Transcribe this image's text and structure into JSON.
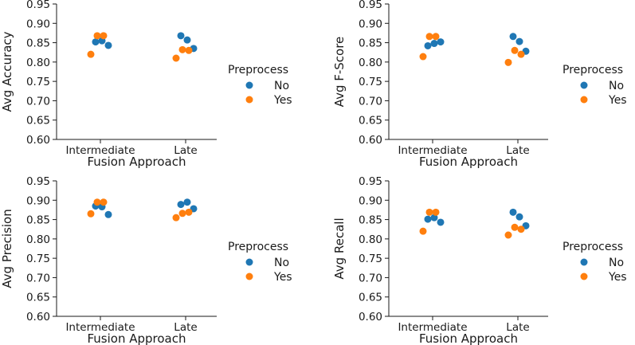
{
  "colors": {
    "No": "#1f77b4",
    "Yes": "#ff7f0e"
  },
  "chart_data": [
    {
      "type": "scatter",
      "title": "",
      "xlabel": "Fusion Approach",
      "ylabel": "Avg Accuracy",
      "categories": [
        "Intermediate",
        "Late"
      ],
      "ylim": [
        0.6,
        0.95
      ],
      "yticks": [
        "0.60",
        "0.65",
        "0.70",
        "0.75",
        "0.80",
        "0.85",
        "0.90",
        "0.95"
      ],
      "legend_title": "Preprocess",
      "series": [
        {
          "name": "No",
          "points": [
            [
              "Intermediate",
              0.852
            ],
            [
              "Intermediate",
              0.855
            ],
            [
              "Intermediate",
              0.843
            ],
            [
              "Late",
              0.868
            ],
            [
              "Late",
              0.857
            ],
            [
              "Late",
              0.835
            ]
          ]
        },
        {
          "name": "Yes",
          "points": [
            [
              "Intermediate",
              0.868
            ],
            [
              "Intermediate",
              0.868
            ],
            [
              "Intermediate",
              0.82
            ],
            [
              "Late",
              0.832
            ],
            [
              "Late",
              0.83
            ],
            [
              "Late",
              0.81
            ]
          ]
        }
      ]
    },
    {
      "type": "scatter",
      "title": "",
      "xlabel": "Fusion Approach",
      "ylabel": "Avg F-Score",
      "categories": [
        "Intermediate",
        "Late"
      ],
      "ylim": [
        0.6,
        0.95
      ],
      "yticks": [
        "0.60",
        "0.65",
        "0.70",
        "0.75",
        "0.80",
        "0.85",
        "0.90",
        "0.95"
      ],
      "legend_title": "Preprocess",
      "series": [
        {
          "name": "No",
          "points": [
            [
              "Intermediate",
              0.842
            ],
            [
              "Intermediate",
              0.848
            ],
            [
              "Intermediate",
              0.852
            ],
            [
              "Late",
              0.866
            ],
            [
              "Late",
              0.853
            ],
            [
              "Late",
              0.828
            ]
          ]
        },
        {
          "name": "Yes",
          "points": [
            [
              "Intermediate",
              0.866
            ],
            [
              "Intermediate",
              0.866
            ],
            [
              "Intermediate",
              0.814
            ],
            [
              "Late",
              0.83
            ],
            [
              "Late",
              0.82
            ],
            [
              "Late",
              0.799
            ]
          ]
        }
      ]
    },
    {
      "type": "scatter",
      "title": "",
      "xlabel": "Fusion Approach",
      "ylabel": "Avg Precision",
      "categories": [
        "Intermediate",
        "Late"
      ],
      "ylim": [
        0.6,
        0.95
      ],
      "yticks": [
        "0.60",
        "0.65",
        "0.70",
        "0.75",
        "0.80",
        "0.85",
        "0.90",
        "0.95"
      ],
      "legend_title": "Preprocess",
      "series": [
        {
          "name": "No",
          "points": [
            [
              "Intermediate",
              0.885
            ],
            [
              "Intermediate",
              0.883
            ],
            [
              "Intermediate",
              0.863
            ],
            [
              "Late",
              0.889
            ],
            [
              "Late",
              0.895
            ],
            [
              "Late",
              0.878
            ]
          ]
        },
        {
          "name": "Yes",
          "points": [
            [
              "Intermediate",
              0.895
            ],
            [
              "Intermediate",
              0.895
            ],
            [
              "Intermediate",
              0.865
            ],
            [
              "Late",
              0.866
            ],
            [
              "Late",
              0.869
            ],
            [
              "Late",
              0.855
            ]
          ]
        }
      ]
    },
    {
      "type": "scatter",
      "title": "",
      "xlabel": "Fusion Approach",
      "ylabel": "Avg Recall",
      "categories": [
        "Intermediate",
        "Late"
      ],
      "ylim": [
        0.6,
        0.95
      ],
      "yticks": [
        "0.60",
        "0.65",
        "0.70",
        "0.75",
        "0.80",
        "0.85",
        "0.90",
        "0.95"
      ],
      "legend_title": "Preprocess",
      "series": [
        {
          "name": "No",
          "points": [
            [
              "Intermediate",
              0.851
            ],
            [
              "Intermediate",
              0.855
            ],
            [
              "Intermediate",
              0.843
            ],
            [
              "Late",
              0.869
            ],
            [
              "Late",
              0.857
            ],
            [
              "Late",
              0.834
            ]
          ]
        },
        {
          "name": "Yes",
          "points": [
            [
              "Intermediate",
              0.869
            ],
            [
              "Intermediate",
              0.869
            ],
            [
              "Intermediate",
              0.82
            ],
            [
              "Late",
              0.83
            ],
            [
              "Late",
              0.825
            ],
            [
              "Late",
              0.81
            ]
          ]
        }
      ]
    }
  ]
}
